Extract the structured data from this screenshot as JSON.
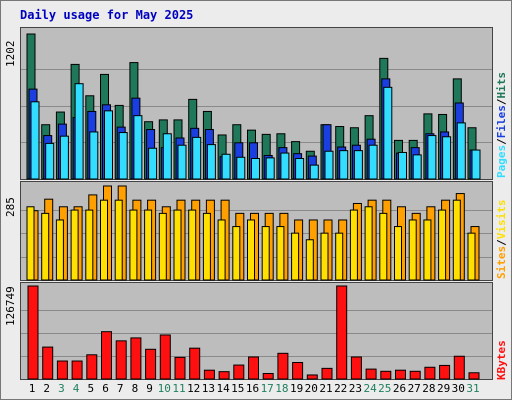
{
  "title": "Daily usage for May 2025",
  "colors": {
    "hits": "#20785a",
    "files": "#1a3ee0",
    "pages": "#33ddff",
    "visits": "#ffa000",
    "sites": "#ffe000",
    "kbytes": "#ff1010",
    "weekend_label": "#208060",
    "weekday_label": "#000000",
    "title": "#0000c0"
  },
  "labels": {
    "top_max": "1202",
    "mid_max": "285",
    "bot_max": "126749",
    "pages": "Pages",
    "files": "Files",
    "hits": "Hits",
    "sites": "Sites",
    "visits": "Visits",
    "kbytes": "KBytes",
    "sep": "/"
  },
  "days": [
    "1",
    "2",
    "3",
    "4",
    "5",
    "6",
    "7",
    "8",
    "9",
    "10",
    "11",
    "12",
    "13",
    "14",
    "15",
    "16",
    "17",
    "18",
    "19",
    "20",
    "21",
    "22",
    "23",
    "24",
    "25",
    "26",
    "27",
    "28",
    "29",
    "30",
    "31"
  ],
  "weekend_days": [
    3,
    4,
    10,
    11,
    17,
    18,
    24,
    25,
    31
  ],
  "chart_data": [
    {
      "type": "bar",
      "title": "Daily usage for May 2025",
      "categories": [
        "1",
        "2",
        "3",
        "4",
        "5",
        "6",
        "7",
        "8",
        "9",
        "10",
        "11",
        "12",
        "13",
        "14",
        "15",
        "16",
        "17",
        "18",
        "19",
        "20",
        "21",
        "22",
        "23",
        "24",
        "25",
        "26",
        "27",
        "28",
        "29",
        "30",
        "31"
      ],
      "ylim": [
        0,
        1202
      ],
      "series": [
        {
          "name": "Hits",
          "values": [
            1202,
            450,
            555,
            950,
            690,
            867,
            610,
            965,
            475,
            490,
            490,
            660,
            560,
            365,
            450,
            405,
            370,
            375,
            310,
            230,
            450,
            435,
            425,
            525,
            1000,
            320,
            320,
            540,
            535,
            830,
            425
          ]
        },
        {
          "name": "Files",
          "values": [
            745,
            360,
            455,
            510,
            560,
            615,
            430,
            670,
            410,
            260,
            340,
            420,
            410,
            185,
            300,
            300,
            195,
            260,
            210,
            190,
            450,
            265,
            280,
            330,
            830,
            215,
            260,
            375,
            390,
            630,
            240
          ]
        },
        {
          "name": "Pages",
          "values": [
            640,
            295,
            355,
            790,
            390,
            565,
            385,
            525,
            255,
            375,
            280,
            345,
            285,
            205,
            180,
            170,
            175,
            215,
            170,
            115,
            230,
            235,
            235,
            280,
            760,
            220,
            200,
            360,
            350,
            465,
            240
          ]
        }
      ]
    },
    {
      "type": "bar",
      "categories": [
        "1",
        "2",
        "3",
        "4",
        "5",
        "6",
        "7",
        "8",
        "9",
        "10",
        "11",
        "12",
        "13",
        "14",
        "15",
        "16",
        "17",
        "18",
        "19",
        "20",
        "21",
        "22",
        "23",
        "24",
        "25",
        "26",
        "27",
        "28",
        "29",
        "30",
        "31"
      ],
      "ylim": [
        0,
        285
      ],
      "series": [
        {
          "name": "Visits",
          "values": [
            210,
            245,
            222,
            222,
            258,
            285,
            285,
            242,
            242,
            222,
            242,
            242,
            242,
            242,
            202,
            202,
            202,
            202,
            182,
            182,
            182,
            182,
            232,
            242,
            242,
            222,
            202,
            222,
            242,
            262,
            162
          ]
        },
        {
          "name": "Sites",
          "values": [
            222,
            202,
            182,
            212,
            212,
            242,
            242,
            212,
            212,
            202,
            212,
            212,
            202,
            182,
            162,
            182,
            162,
            162,
            142,
            122,
            142,
            142,
            212,
            222,
            202,
            162,
            182,
            182,
            212,
            242,
            142
          ]
        }
      ]
    },
    {
      "type": "bar",
      "categories": [
        "1",
        "2",
        "3",
        "4",
        "5",
        "6",
        "7",
        "8",
        "9",
        "10",
        "11",
        "12",
        "13",
        "14",
        "15",
        "16",
        "17",
        "18",
        "19",
        "20",
        "21",
        "22",
        "23",
        "24",
        "25",
        "26",
        "27",
        "28",
        "29",
        "30",
        "31"
      ],
      "ylim": [
        0,
        126749
      ],
      "series": [
        {
          "name": "KBytes",
          "values": [
            126749,
            43500,
            24500,
            24500,
            33000,
            64500,
            52000,
            56000,
            40500,
            60000,
            29500,
            42000,
            12000,
            10000,
            19000,
            30000,
            7500,
            35000,
            22500,
            5500,
            14500,
            126749,
            30000,
            13500,
            10500,
            12000,
            10500,
            16000,
            18500,
            31000,
            8500
          ]
        }
      ]
    }
  ]
}
